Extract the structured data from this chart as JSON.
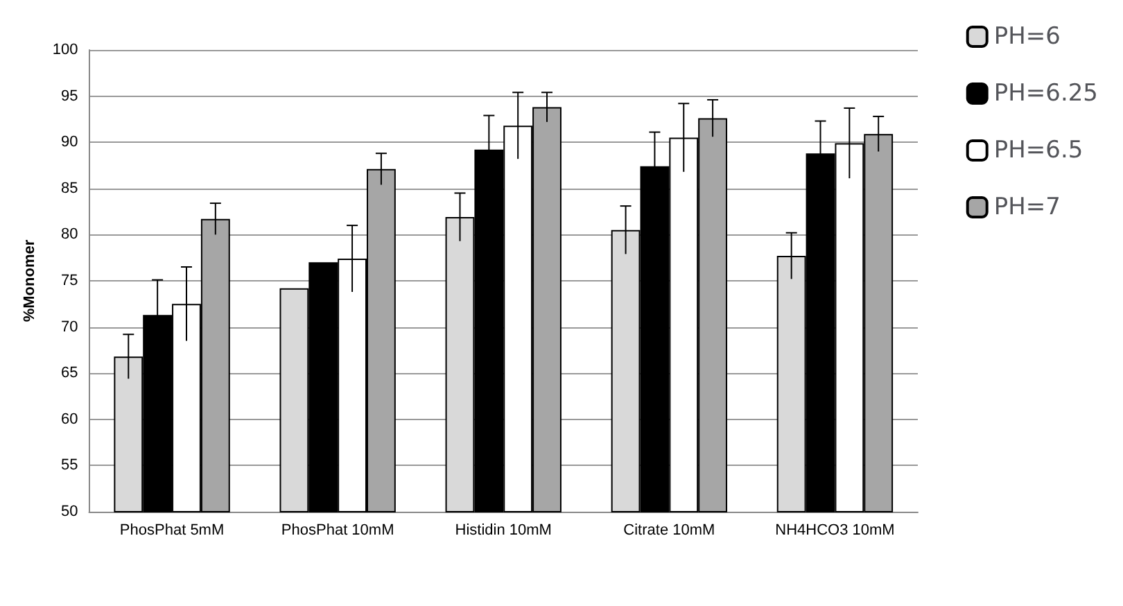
{
  "chart_data": {
    "type": "bar",
    "ylabel": "%Monomer",
    "categories": [
      "PhosPhat 5mM",
      "PhosPhat 10mM",
      "Histidin 10mM",
      "Citrate 10mM",
      "NH4HCO3 10mM"
    ],
    "series": [
      {
        "name": "PH=6",
        "color": "#d9d9d9",
        "values": [
          66.8,
          74.2,
          81.9,
          80.5,
          77.7
        ],
        "errors": [
          2.4,
          null,
          2.6,
          2.6,
          2.5
        ]
      },
      {
        "name": "PH=6.25",
        "color": "#000000",
        "values": [
          71.3,
          77.0,
          89.2,
          87.4,
          88.8
        ],
        "errors": [
          3.8,
          null,
          3.7,
          3.7,
          3.5
        ]
      },
      {
        "name": "PH=6.5",
        "color": "#ffffff",
        "values": [
          72.5,
          77.4,
          91.8,
          90.5,
          89.9
        ],
        "errors": [
          4.0,
          3.6,
          3.6,
          3.7,
          3.8
        ]
      },
      {
        "name": "PH=7",
        "color": "#a6a6a6",
        "values": [
          81.7,
          87.1,
          93.8,
          92.6,
          90.9
        ],
        "errors": [
          1.7,
          1.7,
          1.6,
          2.0,
          1.9
        ]
      }
    ],
    "ylim": [
      50,
      100
    ],
    "yticks": [
      50,
      55,
      60,
      65,
      70,
      75,
      80,
      85,
      90,
      95,
      100
    ],
    "grid": "y",
    "legend": "top right"
  }
}
